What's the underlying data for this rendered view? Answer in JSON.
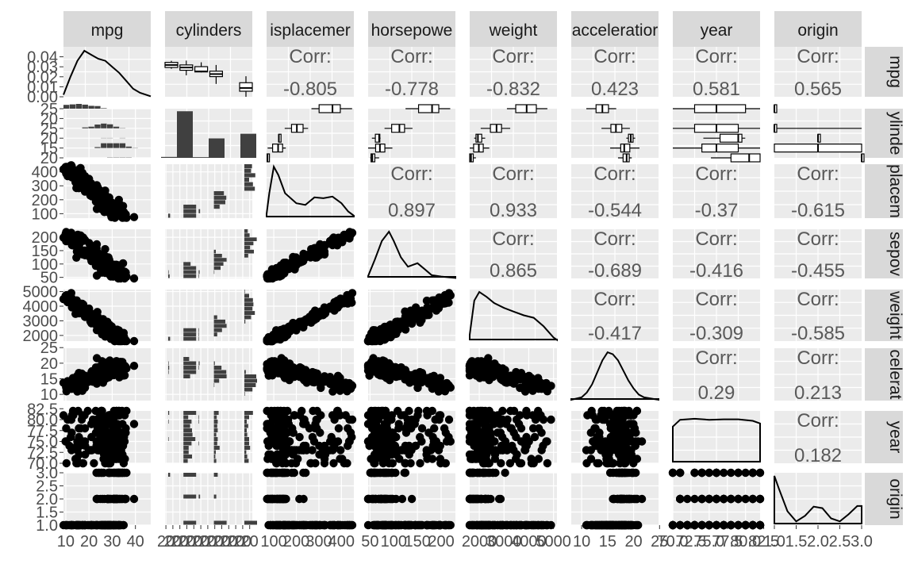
{
  "chart_data": {
    "type": "scatter-matrix",
    "variables": [
      "mpg",
      "cylinders",
      "displacement",
      "horsepower",
      "weight",
      "acceleration",
      "year",
      "origin"
    ],
    "column_labels": [
      "mpg",
      "cylinders",
      "isplacemer",
      "horsepowe",
      "weight",
      "acceleratior",
      "year",
      "origin"
    ],
    "row_labels": [
      "mpg",
      "ylinde",
      "placem",
      "sepov",
      "weight",
      "celerat",
      "year",
      "origin"
    ],
    "ranges": {
      "mpg": [
        9,
        46.6
      ],
      "cylinders": [
        3,
        8
      ],
      "displacement": [
        68,
        455
      ],
      "horsepower": [
        46,
        230
      ],
      "weight": [
        1613,
        5140
      ],
      "acceleration": [
        8,
        24.8
      ],
      "year": [
        70,
        82
      ],
      "origin": [
        1,
        3
      ]
    },
    "y_ticks": {
      "mpg": [
        {
          "v": 0.0,
          "label": "0.00"
        },
        {
          "v": 0.01,
          "label": "0.01"
        },
        {
          "v": 0.02,
          "label": "0.02"
        },
        {
          "v": 0.03,
          "label": "0.03"
        },
        {
          "v": 0.04,
          "label": "0.04"
        }
      ],
      "cylinders": [
        {
          "v": 3,
          "label": "20"
        },
        {
          "v": 4,
          "label": "15"
        },
        {
          "v": 5,
          "label": "20"
        },
        {
          "v": 6,
          "label": "25"
        },
        {
          "v": 7,
          "label": "20"
        },
        {
          "v": 8,
          "label": "25"
        }
      ],
      "displacement": [
        {
          "v": 100,
          "label": "100"
        },
        {
          "v": 200,
          "label": "200"
        },
        {
          "v": 300,
          "label": "300"
        },
        {
          "v": 400,
          "label": "400"
        }
      ],
      "horsepower": [
        {
          "v": 50,
          "label": "50"
        },
        {
          "v": 100,
          "label": "100"
        },
        {
          "v": 150,
          "label": "150"
        },
        {
          "v": 200,
          "label": "200"
        }
      ],
      "weight": [
        {
          "v": 2000,
          "label": "2000"
        },
        {
          "v": 3000,
          "label": "3000"
        },
        {
          "v": 4000,
          "label": "4000"
        },
        {
          "v": 5000,
          "label": "5000"
        }
      ],
      "acceleration": [
        {
          "v": 10,
          "label": "10"
        },
        {
          "v": 15,
          "label": "15"
        },
        {
          "v": 20,
          "label": "20"
        },
        {
          "v": 25,
          "label": "25"
        }
      ],
      "year": [
        {
          "v": 70,
          "label": "70.0"
        },
        {
          "v": 72.5,
          "label": "72.5"
        },
        {
          "v": 75,
          "label": "75.0"
        },
        {
          "v": 77.5,
          "label": "77.5"
        },
        {
          "v": 80,
          "label": "80.0"
        },
        {
          "v": 82.5,
          "label": "82.5"
        }
      ],
      "origin": [
        {
          "v": 1,
          "label": "1.0"
        },
        {
          "v": 1.5,
          "label": "1.5"
        },
        {
          "v": 2,
          "label": "2.0"
        },
        {
          "v": 2.5,
          "label": "2.5"
        },
        {
          "v": 3,
          "label": "3.0"
        }
      ]
    },
    "x_ticks": {
      "mpg": [
        {
          "v": 10,
          "label": "10"
        },
        {
          "v": 20,
          "label": "20"
        },
        {
          "v": 30,
          "label": "30"
        },
        {
          "v": 40,
          "label": "40"
        }
      ],
      "cylinders": [
        {
          "v": 3.05,
          "label": "20"
        },
        {
          "v": 3.45,
          "label": "20"
        },
        {
          "v": 3.85,
          "label": "20"
        },
        {
          "v": 4.25,
          "label": "20"
        },
        {
          "v": 4.65,
          "label": "20"
        },
        {
          "v": 5.05,
          "label": "20"
        },
        {
          "v": 5.45,
          "label": "20"
        },
        {
          "v": 5.85,
          "label": "20"
        },
        {
          "v": 6.25,
          "label": "20"
        },
        {
          "v": 6.65,
          "label": "20"
        },
        {
          "v": 7.05,
          "label": "20"
        },
        {
          "v": 7.45,
          "label": "20"
        },
        {
          "v": 7.85,
          "label": "20"
        }
      ],
      "displacement": [
        {
          "v": 100,
          "label": "100"
        },
        {
          "v": 200,
          "label": "200"
        },
        {
          "v": 300,
          "label": "300"
        },
        {
          "v": 400,
          "label": "400"
        }
      ],
      "horsepower": [
        {
          "v": 50,
          "label": "50"
        },
        {
          "v": 100,
          "label": "100"
        },
        {
          "v": 150,
          "label": "150"
        },
        {
          "v": 200,
          "label": "200"
        }
      ],
      "weight": [
        {
          "v": 2000,
          "label": "2000"
        },
        {
          "v": 3000,
          "label": "3000"
        },
        {
          "v": 4000,
          "label": "4000"
        },
        {
          "v": 5000,
          "label": "5000"
        }
      ],
      "acceleration": [
        {
          "v": 10,
          "label": "10"
        },
        {
          "v": 15,
          "label": "15"
        },
        {
          "v": 20,
          "label": "20"
        },
        {
          "v": 25,
          "label": "25"
        }
      ],
      "year": [
        {
          "v": 70,
          "label": "70.0"
        },
        {
          "v": 72.5,
          "label": "72.5"
        },
        {
          "v": 75,
          "label": "75.0"
        },
        {
          "v": 77.5,
          "label": "77.5"
        },
        {
          "v": 80,
          "label": "80.0"
        },
        {
          "v": 82.5,
          "label": "82.5"
        }
      ],
      "origin": [
        {
          "v": 1,
          "label": "1.0"
        },
        {
          "v": 1.5,
          "label": "1.5"
        },
        {
          "v": 2,
          "label": "2.0"
        },
        {
          "v": 2.5,
          "label": "2.5"
        },
        {
          "v": 3,
          "label": "3.0"
        }
      ]
    },
    "density": {
      "mpg": {
        "x": [
          9,
          12,
          15,
          18,
          21,
          24,
          27,
          30,
          33,
          36,
          39,
          42,
          46.6
        ],
        "y": [
          0.002,
          0.02,
          0.036,
          0.046,
          0.042,
          0.038,
          0.036,
          0.03,
          0.024,
          0.016,
          0.008,
          0.004,
          0.0005
        ],
        "ymax": 0.05
      },
      "displacement": {
        "x": [
          68,
          80,
          100,
          120,
          150,
          200,
          240,
          280,
          320,
          360,
          400,
          430,
          455
        ],
        "y": [
          0.0005,
          0.003,
          0.0062,
          0.0052,
          0.003,
          0.0018,
          0.0016,
          0.0025,
          0.0024,
          0.0026,
          0.0018,
          0.0008,
          0.0003
        ],
        "ymax": 0.0065
      },
      "horsepower": {
        "x": [
          46,
          60,
          75,
          90,
          100,
          115,
          130,
          150,
          165,
          180,
          200,
          230
        ],
        "y": [
          0.001,
          0.008,
          0.016,
          0.02,
          0.016,
          0.009,
          0.005,
          0.0065,
          0.004,
          0.0014,
          0.0008,
          0.0002
        ],
        "ymax": 0.021
      },
      "weight": {
        "x": [
          1613,
          1800,
          2000,
          2300,
          2600,
          3000,
          3400,
          3800,
          4200,
          4600,
          5000,
          5140
        ],
        "y": [
          5e-05,
          0.00033,
          0.0004,
          0.00036,
          0.00031,
          0.00027,
          0.00024,
          0.00021,
          0.00019,
          0.00012,
          3e-05,
          1e-05
        ],
        "ymax": 0.00042
      },
      "acceleration": {
        "x": [
          8,
          10,
          11,
          12,
          13,
          14,
          15,
          16,
          17,
          18,
          19,
          20,
          21,
          22,
          24.8
        ],
        "y": [
          0.002,
          0.008,
          0.02,
          0.04,
          0.07,
          0.1,
          0.12,
          0.115,
          0.1,
          0.075,
          0.05,
          0.03,
          0.015,
          0.008,
          0.002
        ],
        "ymax": 0.13
      },
      "year": {
        "x": [
          70,
          71,
          73,
          75,
          77,
          79,
          81,
          82
        ],
        "y": [
          0.07,
          0.083,
          0.085,
          0.083,
          0.084,
          0.084,
          0.081,
          0.076
        ],
        "ymax": 0.1
      },
      "origin": {
        "x": [
          1,
          1.1,
          1.3,
          1.5,
          1.7,
          1.9,
          2.1,
          2.3,
          2.5,
          2.7,
          2.9,
          3
        ],
        "y": [
          1.6,
          1.2,
          0.45,
          0.12,
          0.3,
          0.6,
          0.55,
          0.22,
          0.12,
          0.35,
          0.62,
          0.62
        ],
        "ymax": 1.7
      }
    },
    "cylinders_bar": {
      "categories": [
        3,
        4,
        5,
        6,
        8
      ],
      "counts": [
        4,
        199,
        3,
        83,
        103
      ],
      "max": 210
    },
    "correlations": [
      {
        "r": 0,
        "c": 2,
        "label": "Corr:",
        "value": "-0.805"
      },
      {
        "r": 0,
        "c": 3,
        "label": "Corr:",
        "value": "-0.778"
      },
      {
        "r": 0,
        "c": 4,
        "label": "Corr:",
        "value": "-0.832"
      },
      {
        "r": 0,
        "c": 5,
        "label": "Corr:",
        "value": "0.423"
      },
      {
        "r": 0,
        "c": 6,
        "label": "Corr:",
        "value": "0.581"
      },
      {
        "r": 0,
        "c": 7,
        "label": "Corr:",
        "value": "0.565"
      },
      {
        "r": 2,
        "c": 3,
        "label": "Corr:",
        "value": "0.897"
      },
      {
        "r": 2,
        "c": 4,
        "label": "Corr:",
        "value": "0.933"
      },
      {
        "r": 2,
        "c": 5,
        "label": "Corr:",
        "value": "-0.544"
      },
      {
        "r": 2,
        "c": 6,
        "label": "Corr:",
        "value": "-0.37"
      },
      {
        "r": 2,
        "c": 7,
        "label": "Corr:",
        "value": "-0.615"
      },
      {
        "r": 3,
        "c": 4,
        "label": "Corr:",
        "value": "0.865"
      },
      {
        "r": 3,
        "c": 5,
        "label": "Corr:",
        "value": "-0.689"
      },
      {
        "r": 3,
        "c": 6,
        "label": "Corr:",
        "value": "-0.416"
      },
      {
        "r": 3,
        "c": 7,
        "label": "Corr:",
        "value": "-0.455"
      },
      {
        "r": 4,
        "c": 5,
        "label": "Corr:",
        "value": "-0.417"
      },
      {
        "r": 4,
        "c": 6,
        "label": "Corr:",
        "value": "-0.309"
      },
      {
        "r": 4,
        "c": 7,
        "label": "Corr:",
        "value": "-0.585"
      },
      {
        "r": 5,
        "c": 6,
        "label": "Corr:",
        "value": "0.29"
      },
      {
        "r": 5,
        "c": 7,
        "label": "Corr:",
        "value": "0.213"
      },
      {
        "r": 6,
        "c": 7,
        "label": "Corr:",
        "value": "0.182"
      }
    ],
    "grid": true,
    "colors": {
      "panel": "#ebebeb",
      "grid": "#ffffff",
      "strip": "#d9d9d9",
      "ink": "#000000",
      "box_fill": "#ffffff",
      "bar": "#404040"
    }
  }
}
